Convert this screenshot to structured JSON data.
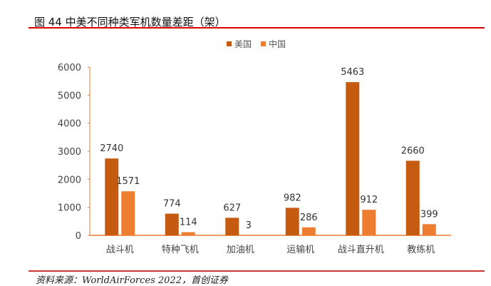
{
  "title": "图 44 中美不同种类军机数量差距（架）",
  "source": "资料来源：WorldAirForces 2022，首创证券",
  "chart_data": {
    "type": "bar",
    "title": "图 44 中美不同种类军机数量差距（架）",
    "categories": [
      "战斗机",
      "特种飞机",
      "加油机",
      "运输机",
      "战斗直升机",
      "教练机"
    ],
    "series": [
      {
        "name": "美国",
        "color": "#C55A11",
        "values": [
          2740,
          774,
          627,
          982,
          5463,
          2660
        ]
      },
      {
        "name": "中国",
        "color": "#ED7D31",
        "values": [
          1571,
          114,
          3,
          286,
          912,
          399
        ]
      }
    ],
    "ylim": [
      0,
      6000
    ],
    "yticks": [
      0,
      1000,
      2000,
      3000,
      4000,
      5000,
      6000
    ],
    "xlabel": "",
    "ylabel": "",
    "legend": "top-center",
    "grid": false
  }
}
